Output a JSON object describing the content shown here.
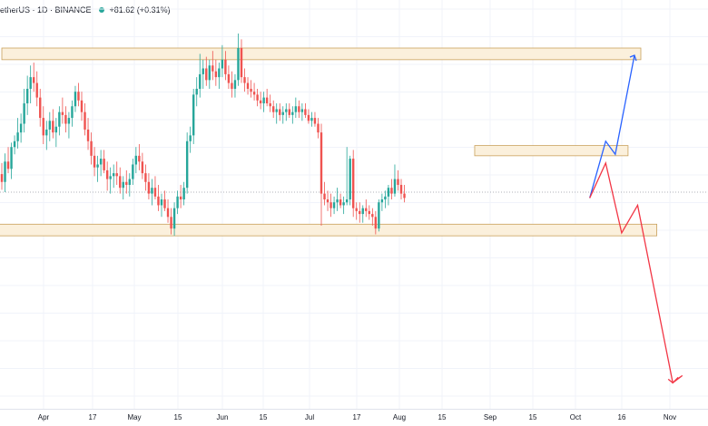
{
  "header": {
    "symbol_line": "etherUS · 1D · BINANCE",
    "change": "+81.62 (+0.31%)",
    "dot_color": "#26a69a"
  },
  "chart_data": {
    "type": "candlestick",
    "title": "",
    "xlabel": "",
    "ylabel": "",
    "x_ticks": [
      "Apr",
      "17",
      "May",
      "15",
      "Jun",
      "15",
      "Jul",
      "17",
      "Aug",
      "15",
      "Sep",
      "15",
      "Oct",
      "16",
      "Nov"
    ],
    "colors": {
      "up": "#26a69a",
      "down": "#ef5350",
      "grid": "#f0f3fa",
      "zone_fill": "#fbf0dc",
      "zone_stroke": "#c9a15c",
      "bull_path": "#2962ff",
      "bear_path": "#f23645",
      "price_line": "#9598a1"
    },
    "zones": [
      {
        "name": "upper-resistance-zone",
        "x_start": 0,
        "x_end": 200,
        "y_low": 30900,
        "y_high": 31300
      },
      {
        "name": "middle-resistance-zone",
        "x_start": 148,
        "x_end": 196,
        "y_low": 27600,
        "y_high": 27950
      },
      {
        "name": "lower-support-zone",
        "x_start": -5,
        "x_end": 205,
        "y_low": 24850,
        "y_high": 25250
      }
    ],
    "projections": [
      {
        "name": "bullish-projection",
        "color": "blue",
        "points": [
          [
            184,
            26150
          ],
          [
            189,
            28100
          ],
          [
            192,
            27650
          ],
          [
            198,
            31050
          ]
        ]
      },
      {
        "name": "bearish-projection",
        "color": "red",
        "points": [
          [
            184,
            26150
          ],
          [
            189,
            27350
          ],
          [
            194,
            24950
          ],
          [
            199,
            25900
          ],
          [
            210,
            19800
          ],
          [
            213,
            20050
          ],
          [
            211,
            19900
          ]
        ]
      }
    ],
    "current_price": 26350,
    "candles": [
      [
        26970,
        27350,
        26430,
        26700
      ],
      [
        26700,
        27680,
        26350,
        27400
      ],
      [
        27400,
        27900,
        27000,
        27150
      ],
      [
        27150,
        28050,
        26800,
        27900
      ],
      [
        27900,
        28300,
        27650,
        28100
      ],
      [
        28100,
        28900,
        27850,
        28400
      ],
      [
        28400,
        29050,
        28050,
        28700
      ],
      [
        28700,
        29900,
        28400,
        29400
      ],
      [
        29400,
        30350,
        29000,
        29900
      ],
      [
        29900,
        30700,
        29400,
        30300
      ],
      [
        30300,
        30800,
        29800,
        30100
      ],
      [
        30100,
        30500,
        29300,
        29600
      ],
      [
        29600,
        29900,
        28600,
        28900
      ],
      [
        28900,
        29300,
        28000,
        28300
      ],
      [
        28300,
        28800,
        27800,
        28500
      ],
      [
        28500,
        29100,
        28100,
        28800
      ],
      [
        28800,
        29200,
        28200,
        28400
      ],
      [
        28400,
        28900,
        27900,
        28600
      ],
      [
        28600,
        29300,
        28300,
        29100
      ],
      [
        29100,
        29600,
        28700,
        29000
      ],
      [
        29000,
        29300,
        28400,
        28700
      ],
      [
        28700,
        29100,
        28200,
        28900
      ],
      [
        28900,
        29500,
        28600,
        29300
      ],
      [
        29300,
        30000,
        29100,
        29800
      ],
      [
        29800,
        30100,
        29300,
        29500
      ],
      [
        29500,
        29800,
        28800,
        29100
      ],
      [
        29100,
        29400,
        28300,
        28500
      ],
      [
        28500,
        28900,
        27800,
        28100
      ],
      [
        28100,
        28400,
        27300,
        27600
      ],
      [
        27600,
        27900,
        26900,
        27200
      ],
      [
        27200,
        27600,
        26700,
        27300
      ],
      [
        27300,
        27800,
        26900,
        27500
      ],
      [
        27500,
        27800,
        27000,
        27100
      ],
      [
        27100,
        27400,
        26400,
        26800
      ],
      [
        26800,
        27200,
        26300,
        26900
      ],
      [
        26900,
        27300,
        26500,
        27000
      ],
      [
        27000,
        27400,
        26600,
        26900
      ],
      [
        26900,
        27200,
        26300,
        26500
      ],
      [
        26500,
        26900,
        26100,
        26700
      ],
      [
        26700,
        27100,
        26300,
        26600
      ],
      [
        26600,
        27000,
        26200,
        26800
      ],
      [
        26800,
        27500,
        26600,
        27300
      ],
      [
        27300,
        27900,
        27000,
        27600
      ],
      [
        27600,
        28000,
        27100,
        27400
      ],
      [
        27400,
        27700,
        26800,
        27000
      ],
      [
        27000,
        27300,
        26400,
        26700
      ],
      [
        26700,
        27000,
        26100,
        26300
      ],
      [
        26300,
        26800,
        25900,
        26500
      ],
      [
        26500,
        26900,
        26100,
        26200
      ],
      [
        26200,
        26600,
        25700,
        25900
      ],
      [
        25900,
        26300,
        25500,
        26100
      ],
      [
        26100,
        26400,
        25700,
        25800
      ],
      [
        25800,
        26100,
        25300,
        25500
      ],
      [
        25500,
        25800,
        24900,
        25100
      ],
      [
        25100,
        26000,
        24850,
        25800
      ],
      [
        25800,
        26400,
        25600,
        26200
      ],
      [
        26200,
        26600,
        25800,
        26100
      ],
      [
        26100,
        26700,
        25900,
        26500
      ],
      [
        26500,
        28400,
        26300,
        28100
      ],
      [
        28100,
        28600,
        27700,
        28300
      ],
      [
        28300,
        29900,
        28000,
        29700
      ],
      [
        29700,
        30300,
        29300,
        29900
      ],
      [
        29900,
        31100,
        29600,
        30400
      ],
      [
        30400,
        30900,
        29900,
        30600
      ],
      [
        30600,
        31000,
        30000,
        30200
      ],
      [
        30200,
        30900,
        29900,
        30700
      ],
      [
        30700,
        31200,
        30200,
        30500
      ],
      [
        30500,
        30900,
        30000,
        30300
      ],
      [
        30300,
        30800,
        29900,
        30600
      ],
      [
        30600,
        31400,
        30300,
        30900
      ],
      [
        30900,
        31200,
        30200,
        30400
      ],
      [
        30400,
        30700,
        29900,
        30100
      ],
      [
        30100,
        30500,
        29600,
        29900
      ],
      [
        29900,
        30400,
        29600,
        30200
      ],
      [
        30200,
        31800,
        30000,
        31300
      ],
      [
        31300,
        31600,
        30100,
        30300
      ],
      [
        30300,
        30600,
        29800,
        30100
      ],
      [
        30100,
        30300,
        29700,
        29900
      ],
      [
        29900,
        30200,
        29600,
        29800
      ],
      [
        29800,
        30100,
        29500,
        29700
      ],
      [
        29700,
        29900,
        29300,
        29500
      ],
      [
        29500,
        29800,
        29200,
        29400
      ],
      [
        29400,
        29800,
        29100,
        29600
      ],
      [
        29600,
        29900,
        29300,
        29400
      ],
      [
        29400,
        29700,
        29100,
        29300
      ],
      [
        29300,
        29500,
        28900,
        29100
      ],
      [
        29100,
        29400,
        28700,
        29200
      ],
      [
        29200,
        29400,
        28800,
        29000
      ],
      [
        29000,
        29300,
        28700,
        29100
      ],
      [
        29100,
        29400,
        28800,
        29200
      ],
      [
        29200,
        29400,
        28900,
        29000
      ],
      [
        29000,
        29300,
        28700,
        29100
      ],
      [
        29100,
        29600,
        28900,
        29300
      ],
      [
        29300,
        29500,
        28900,
        29100
      ],
      [
        29100,
        29400,
        28800,
        29200
      ],
      [
        29200,
        29400,
        28900,
        29000
      ],
      [
        29000,
        29200,
        28700,
        28800
      ],
      [
        28800,
        29100,
        28600,
        28900
      ],
      [
        28900,
        29100,
        28600,
        28700
      ],
      [
        28700,
        28900,
        28200,
        28400
      ],
      [
        28400,
        28700,
        25200,
        26300
      ],
      [
        26300,
        26700,
        25900,
        26100
      ],
      [
        26100,
        26400,
        25700,
        26000
      ],
      [
        26000,
        26300,
        25500,
        25800
      ],
      [
        25800,
        26200,
        25600,
        26000
      ],
      [
        26000,
        26500,
        25700,
        26100
      ],
      [
        26100,
        26300,
        25800,
        25900
      ],
      [
        25900,
        26200,
        25600,
        26000
      ],
      [
        26000,
        27900,
        25900,
        26100
      ],
      [
        26100,
        27600,
        25900,
        27500
      ],
      [
        27500,
        27800,
        25500,
        25800
      ],
      [
        25800,
        26000,
        25400,
        25700
      ],
      [
        25700,
        26000,
        25300,
        25600
      ],
      [
        25600,
        25900,
        25300,
        25800
      ],
      [
        25800,
        26100,
        25500,
        25700
      ],
      [
        25700,
        25900,
        25400,
        25600
      ],
      [
        25600,
        25800,
        25200,
        25500
      ],
      [
        25500,
        25700,
        24900,
        25100
      ],
      [
        25100,
        26100,
        25000,
        26000
      ],
      [
        26000,
        26300,
        25700,
        26100
      ],
      [
        26100,
        26400,
        25800,
        26200
      ],
      [
        26200,
        26600,
        25900,
        26500
      ],
      [
        26500,
        26800,
        26100,
        26300
      ],
      [
        26300,
        27300,
        26200,
        26800
      ],
      [
        26800,
        27100,
        26400,
        26600
      ],
      [
        26600,
        26800,
        26100,
        26300
      ],
      [
        26300,
        26600,
        26000,
        26150
      ]
    ]
  }
}
